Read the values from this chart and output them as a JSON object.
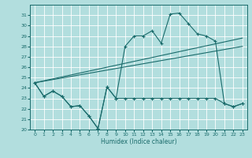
{
  "xlabel": "Humidex (Indice chaleur)",
  "bg_color": "#b2dede",
  "grid_color": "#ffffff",
  "line_color": "#1a6b6b",
  "xlim": [
    -0.5,
    23.5
  ],
  "ylim": [
    20,
    32
  ],
  "xticks": [
    0,
    1,
    2,
    3,
    4,
    5,
    6,
    7,
    8,
    9,
    10,
    11,
    12,
    13,
    14,
    15,
    16,
    17,
    18,
    19,
    20,
    21,
    22,
    23
  ],
  "yticks": [
    20,
    21,
    22,
    23,
    24,
    25,
    26,
    27,
    28,
    29,
    30,
    31
  ],
  "curve_main_x": [
    0,
    1,
    2,
    3,
    4,
    5,
    6,
    7,
    8,
    9,
    10,
    11,
    12,
    13,
    14,
    15,
    16,
    17,
    18,
    19,
    20,
    21,
    22,
    23
  ],
  "curve_main_y": [
    24.5,
    23.2,
    23.7,
    23.2,
    22.2,
    22.3,
    21.3,
    20.1,
    24.1,
    23.0,
    28.0,
    29.0,
    29.0,
    29.5,
    28.3,
    31.1,
    31.2,
    30.2,
    29.2,
    29.0,
    28.5,
    22.5,
    22.2,
    22.5
  ],
  "curve_low_x": [
    0,
    1,
    2,
    3,
    4,
    5,
    6,
    7,
    8,
    9,
    10,
    11,
    12,
    13,
    14,
    15,
    16,
    17,
    18,
    19,
    20,
    21,
    22,
    23
  ],
  "curve_low_y": [
    24.5,
    23.2,
    23.7,
    23.2,
    22.2,
    22.3,
    21.3,
    20.1,
    24.1,
    23.0,
    23.0,
    23.0,
    23.0,
    23.0,
    23.0,
    23.0,
    23.0,
    23.0,
    23.0,
    23.0,
    23.0,
    22.5,
    22.2,
    22.5
  ],
  "line1_x": [
    0,
    23
  ],
  "line1_y": [
    24.5,
    28.8
  ],
  "line2_x": [
    0,
    23
  ],
  "line2_y": [
    24.5,
    28.0
  ]
}
